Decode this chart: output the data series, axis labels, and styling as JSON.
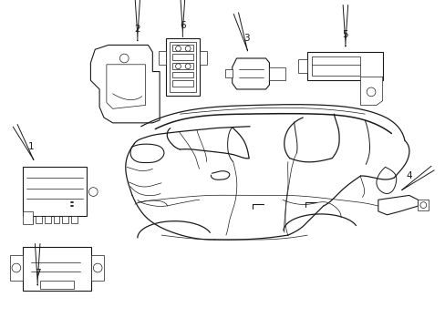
{
  "bg_color": "#ffffff",
  "line_color": "#1a1a1a",
  "figsize": [
    4.89,
    3.6
  ],
  "dpi": 100,
  "lw_car": 0.9,
  "lw_part": 0.8,
  "lw_thin": 0.5,
  "font_size": 7.5
}
